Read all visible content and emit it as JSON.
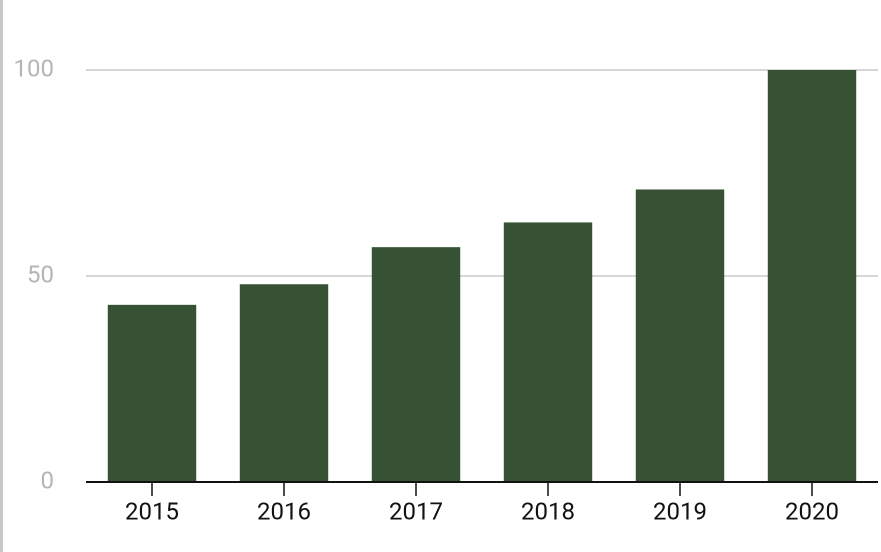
{
  "chart_data": {
    "type": "bar",
    "categories": [
      "2015",
      "2016",
      "2017",
      "2018",
      "2019",
      "2020"
    ],
    "values": [
      43,
      48,
      57,
      63,
      71,
      100
    ],
    "color": "#375134",
    "ylim": [
      0,
      100
    ],
    "yticks": [
      0,
      50,
      100
    ],
    "grid": true
  }
}
